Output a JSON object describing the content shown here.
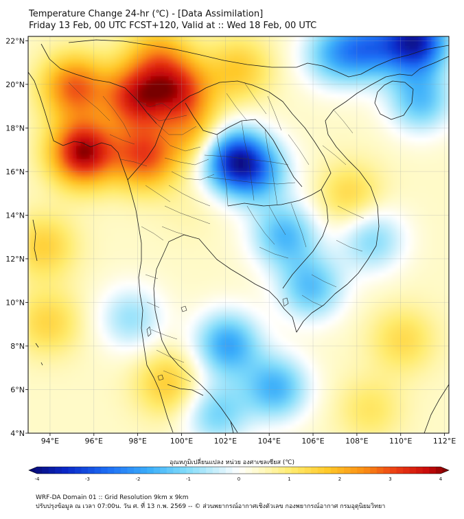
{
  "title": {
    "line1": "Temperature Change 24-hr (℃) - [Data Assimilation]",
    "line2": "Friday 13 Feb, 00 UTC FCST+120, Valid at :: Wed 18 Feb, 00 UTC"
  },
  "axes": {
    "lon_labels": [
      "94°E",
      "96°E",
      "98°E",
      "100°E",
      "102°E",
      "104°E",
      "106°E",
      "108°E",
      "110°E",
      "112°E"
    ],
    "lat_labels": [
      "22°N",
      "20°N",
      "18°N",
      "16°N",
      "14°N",
      "12°N",
      "10°N",
      "8°N",
      "6°N",
      "4°N"
    ],
    "lon_range": [
      93,
      112.2
    ],
    "lat_range": [
      4,
      22.2
    ]
  },
  "colorbar": {
    "title": "อุณหภูมิเปลี่ยนแปลง หน่วย องศาเซลเซียส (℃)",
    "ticks": [
      "-4",
      "-3",
      "-2",
      "-1",
      "0",
      "1",
      "2",
      "3",
      "4"
    ],
    "range": [
      -4,
      4
    ]
  },
  "footer": {
    "line1": "WRF-DA Domain 01 :: Grid Resolution 9km x 9km",
    "line2": "ปรับปรุงข้อมูล ณ เวลา 07:00น. วัน ศ. ที่ 13 ก.พ. 2569 -- © ส่วนพยากรณ์อากาศเชิงตัวเลข กองพยากรณ์อากาศ กรมอุตุนิยมวิทยา"
  },
  "field": {
    "background": 0.4,
    "anomalies": [
      {
        "name": "warm-andaman-core",
        "lon": 95.4,
        "lat": 16.8,
        "value": 3.4
      },
      {
        "name": "warm-myanmar-north",
        "lon": 95.0,
        "lat": 19.8,
        "value": 2.3
      },
      {
        "name": "warm-shan-highlands",
        "lon": 97.8,
        "lat": 19.3,
        "value": 2.6
      },
      {
        "name": "warm-northern-thailand",
        "lon": 99.8,
        "lat": 19.6,
        "value": 2.4
      },
      {
        "name": "warm-salween",
        "lon": 98.2,
        "lat": 16.6,
        "value": 2.4
      },
      {
        "name": "warm-north-top",
        "lon": 98.8,
        "lat": 21.2,
        "value": 1.5
      },
      {
        "name": "warm-east-central",
        "lon": 100.6,
        "lat": 17.5,
        "value": 1.4
      },
      {
        "name": "warm-laos-north",
        "lon": 102.5,
        "lat": 20.6,
        "value": 1.2
      },
      {
        "name": "cold-khorat",
        "lon": 102.2,
        "lat": 16.5,
        "value": -3.4
      },
      {
        "name": "cold-northeast",
        "lon": 103.4,
        "lat": 15.9,
        "value": -1.8
      },
      {
        "name": "cold-cambodia",
        "lon": 104.6,
        "lat": 13.0,
        "value": -1.9
      },
      {
        "name": "cold-mekong-delta",
        "lon": 105.8,
        "lat": 10.6,
        "value": -1.8
      },
      {
        "name": "cold-south-china-sea",
        "lon": 108.6,
        "lat": 12.8,
        "value": -1.4
      },
      {
        "name": "cold-gulf-of-thailand",
        "lon": 102.0,
        "lat": 8.0,
        "value": -2.2
      },
      {
        "name": "cold-malay-sea",
        "lon": 104.2,
        "lat": 6.0,
        "value": -2.0
      },
      {
        "name": "cold-andaman-south",
        "lon": 97.6,
        "lat": 9.2,
        "value": -1.2
      },
      {
        "name": "cold-far-south",
        "lon": 101.5,
        "lat": 4.8,
        "value": -1.5
      },
      {
        "name": "cold-guangxi",
        "lon": 110.6,
        "lat": 21.9,
        "value": -3.8
      },
      {
        "name": "cold-hainan",
        "lon": 108.4,
        "lat": 21.6,
        "value": -2.2
      },
      {
        "name": "cold-tonkin",
        "lon": 106.8,
        "lat": 21.3,
        "value": -1.6
      },
      {
        "name": "cold-east-sea-north",
        "lon": 110.8,
        "lat": 19.2,
        "value": -1.8
      },
      {
        "name": "warm-central-plain",
        "lon": 100.3,
        "lat": 14.4,
        "value": 0.2
      },
      {
        "name": "warm-east-strip",
        "lon": 107.6,
        "lat": 14.8,
        "value": 1.0
      },
      {
        "name": "warm-southwest-sea",
        "lon": 93.8,
        "lat": 9.0,
        "value": 1.0
      },
      {
        "name": "warm-sea-southeast",
        "lon": 110.0,
        "lat": 8.2,
        "value": 0.9
      },
      {
        "name": "warm-sea-south",
        "lon": 108.5,
        "lat": 5.0,
        "value": 0.7
      },
      {
        "name": "warm-penang",
        "lon": 99.3,
        "lat": 6.2,
        "value": 1.2
      },
      {
        "name": "warm-bay-of-bengal",
        "lon": 93.6,
        "lat": 12.5,
        "value": 1.1
      }
    ]
  }
}
